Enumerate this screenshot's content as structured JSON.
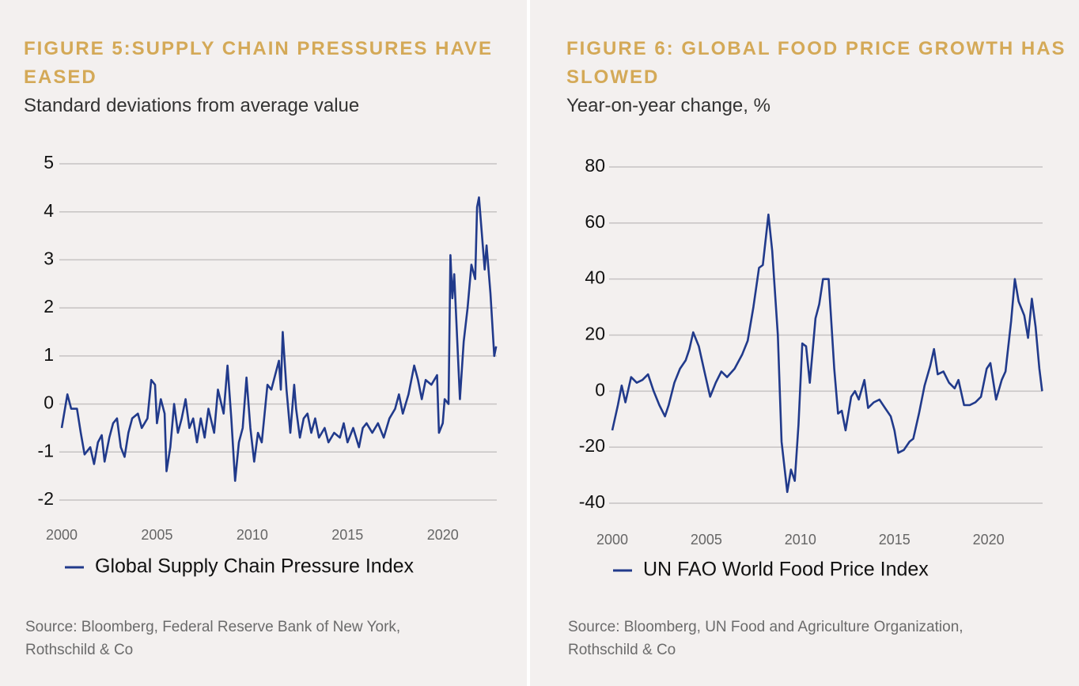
{
  "chart_data": [
    {
      "type": "line",
      "title": "FIGURE 5:SUPPLY CHAIN PRESSURES HAVE EASED",
      "subtitle": "Standard deviations from average value",
      "source": "Source: Bloomberg, Federal Reserve Bank of New York, Rothschild & Co",
      "x": [
        2000.0,
        2000.3,
        2000.5,
        2000.8,
        2001.0,
        2001.2,
        2001.5,
        2001.7,
        2001.9,
        2002.1,
        2002.25,
        2002.5,
        2002.7,
        2002.9,
        2003.1,
        2003.3,
        2003.5,
        2003.7,
        2004.0,
        2004.2,
        2004.5,
        2004.7,
        2004.9,
        2005.0,
        2005.2,
        2005.4,
        2005.5,
        2005.7,
        2005.9,
        2006.1,
        2006.3,
        2006.5,
        2006.7,
        2006.9,
        2007.1,
        2007.3,
        2007.5,
        2007.7,
        2008.0,
        2008.2,
        2008.5,
        2008.7,
        2008.9,
        2009.1,
        2009.3,
        2009.5,
        2009.7,
        2009.9,
        2010.1,
        2010.3,
        2010.5,
        2010.7,
        2010.8,
        2011.0,
        2011.2,
        2011.4,
        2011.5,
        2011.6,
        2011.8,
        2012.0,
        2012.2,
        2012.3,
        2012.5,
        2012.7,
        2012.9,
        2013.1,
        2013.3,
        2013.5,
        2013.8,
        2014.0,
        2014.3,
        2014.6,
        2014.8,
        2015.0,
        2015.3,
        2015.6,
        2015.8,
        2016.0,
        2016.3,
        2016.6,
        2016.9,
        2017.2,
        2017.5,
        2017.7,
        2017.9,
        2018.2,
        2018.5,
        2018.7,
        2018.9,
        2019.1,
        2019.4,
        2019.7,
        2019.8,
        2020.0,
        2020.1,
        2020.3,
        2020.4,
        2020.5,
        2020.6,
        2020.9,
        2021.1,
        2021.3,
        2021.5,
        2021.7,
        2021.8,
        2021.9,
        2022.2,
        2022.3,
        2022.5,
        2022.7,
        2022.8
      ],
      "series": [
        {
          "name": "Global Supply Chain Pressure Index",
          "color": "#213a8b",
          "values": [
            -0.5,
            0.2,
            -0.1,
            -0.1,
            -0.6,
            -1.05,
            -0.9,
            -1.25,
            -0.8,
            -0.65,
            -1.2,
            -0.7,
            -0.4,
            -0.3,
            -0.9,
            -1.1,
            -0.6,
            -0.3,
            -0.2,
            -0.5,
            -0.3,
            0.5,
            0.4,
            -0.4,
            0.1,
            -0.2,
            -1.4,
            -0.9,
            0.0,
            -0.6,
            -0.3,
            0.1,
            -0.5,
            -0.3,
            -0.8,
            -0.3,
            -0.7,
            -0.1,
            -0.6,
            0.3,
            -0.2,
            0.8,
            -0.3,
            -1.6,
            -0.8,
            -0.5,
            0.55,
            -0.5,
            -1.2,
            -0.6,
            -0.8,
            0.0,
            0.4,
            0.3,
            0.6,
            0.9,
            0.3,
            1.5,
            0.3,
            -0.6,
            0.4,
            -0.1,
            -0.7,
            -0.3,
            -0.2,
            -0.6,
            -0.3,
            -0.7,
            -0.5,
            -0.8,
            -0.6,
            -0.7,
            -0.4,
            -0.8,
            -0.5,
            -0.9,
            -0.5,
            -0.4,
            -0.6,
            -0.4,
            -0.7,
            -0.3,
            -0.1,
            0.2,
            -0.2,
            0.2,
            0.8,
            0.5,
            0.1,
            0.5,
            0.4,
            0.6,
            -0.6,
            -0.4,
            0.1,
            0.0,
            3.1,
            2.2,
            2.7,
            0.1,
            1.3,
            2.0,
            2.9,
            2.6,
            4.1,
            4.3,
            2.8,
            3.3,
            2.3,
            1.0,
            1.2
          ]
        }
      ],
      "xlim": [
        2000,
        2023
      ],
      "xticks": [
        2000,
        2005,
        2010,
        2015,
        2020
      ],
      "ylim": [
        -2,
        5
      ],
      "yticks": [
        -2,
        -1,
        0,
        1,
        2,
        3,
        4,
        5
      ],
      "grid": true
    },
    {
      "type": "line",
      "title": "FIGURE 6: GLOBAL FOOD PRICE GROWTH HAS SLOWED",
      "subtitle": "Year-on-year change, %",
      "source": "Source: Bloomberg, UN Food and Agriculture Organization, Rothschild & Co",
      "x": [
        2000.0,
        2000.3,
        2000.5,
        2000.7,
        2001.0,
        2001.3,
        2001.6,
        2001.9,
        2002.2,
        2002.5,
        2002.8,
        2003.0,
        2003.3,
        2003.6,
        2003.9,
        2004.1,
        2004.3,
        2004.6,
        2004.9,
        2005.2,
        2005.5,
        2005.8,
        2006.1,
        2006.5,
        2006.9,
        2007.2,
        2007.5,
        2007.8,
        2008.0,
        2008.3,
        2008.5,
        2008.8,
        2009.0,
        2009.3,
        2009.5,
        2009.7,
        2009.9,
        2010.1,
        2010.3,
        2010.5,
        2010.8,
        2011.0,
        2011.2,
        2011.5,
        2011.8,
        2012.0,
        2012.2,
        2012.4,
        2012.7,
        2012.9,
        2013.1,
        2013.4,
        2013.6,
        2013.9,
        2014.2,
        2014.5,
        2014.8,
        2015.0,
        2015.2,
        2015.5,
        2015.8,
        2016.0,
        2016.3,
        2016.6,
        2016.9,
        2017.1,
        2017.3,
        2017.6,
        2017.9,
        2018.2,
        2018.4,
        2018.7,
        2019.0,
        2019.3,
        2019.6,
        2019.9,
        2020.1,
        2020.4,
        2020.7,
        2020.9,
        2021.2,
        2021.4,
        2021.6,
        2021.9,
        2022.1,
        2022.3,
        2022.5,
        2022.7,
        2022.85
      ],
      "series": [
        {
          "name": "UN FAO World Food Price Index",
          "color": "#213a8b",
          "values": [
            -14,
            -5,
            2,
            -4,
            5,
            3,
            4,
            6,
            0,
            -5,
            -9,
            -5,
            3,
            8,
            11,
            15,
            21,
            16,
            7,
            -2,
            3,
            7,
            5,
            8,
            13,
            18,
            30,
            44,
            45,
            63,
            50,
            20,
            -18,
            -36,
            -28,
            -32,
            -12,
            17,
            16,
            3,
            26,
            31,
            40,
            40,
            8,
            -8,
            -7,
            -14,
            -2,
            0,
            -3,
            4,
            -6,
            -4,
            -3,
            -6,
            -9,
            -14,
            -22,
            -21,
            -18,
            -17,
            -8,
            2,
            9,
            15,
            6,
            7,
            3,
            1,
            4,
            -5,
            -5,
            -4,
            -2,
            8,
            10,
            -3,
            4,
            7,
            25,
            40,
            32,
            27,
            19,
            33,
            23,
            8,
            0
          ]
        }
      ],
      "xlim": [
        2000,
        2023
      ],
      "xticks": [
        2000,
        2005,
        2010,
        2015,
        2020
      ],
      "ylim": [
        -40,
        80
      ],
      "yticks": [
        -40,
        -20,
        0,
        20,
        40,
        60,
        80
      ],
      "grid": true
    }
  ]
}
